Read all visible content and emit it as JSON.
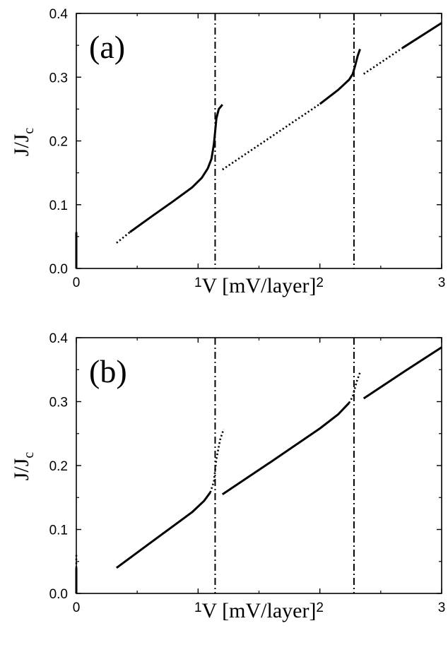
{
  "chart_data": [
    {
      "type": "line",
      "panel_label": "(a)",
      "xlabel": "V [mV/layer]",
      "ylabel": "J/J",
      "ylabel_sub": "c",
      "xlim": [
        0,
        3
      ],
      "ylim": [
        0,
        0.4
      ],
      "xticks": [
        "0",
        "1",
        "2",
        "3"
      ],
      "yticks": [
        "0.0",
        "0.1",
        "0.2",
        "0.3",
        "0.4"
      ],
      "grid": false,
      "vlines": [
        1.14,
        2.28
      ],
      "series": [
        {
          "style": "solid",
          "x": [
            0.0,
            0.0
          ],
          "y": [
            0.0,
            0.057
          ]
        },
        {
          "style": "dotted",
          "x": [
            0.33,
            0.44
          ],
          "y": [
            0.04,
            0.057
          ]
        },
        {
          "style": "solid",
          "x": [
            0.44,
            0.6,
            0.8,
            0.95,
            1.03,
            1.08,
            1.11,
            1.13,
            1.14,
            1.15,
            1.17,
            1.2
          ],
          "y": [
            0.057,
            0.079,
            0.106,
            0.127,
            0.142,
            0.157,
            0.172,
            0.195,
            0.215,
            0.235,
            0.25,
            0.257
          ]
        },
        {
          "style": "dotted",
          "x": [
            1.2,
            2.0
          ],
          "y": [
            0.155,
            0.258
          ]
        },
        {
          "style": "solid",
          "x": [
            2.0,
            2.15,
            2.24,
            2.27,
            2.29,
            2.31,
            2.33
          ],
          "y": [
            0.258,
            0.28,
            0.296,
            0.305,
            0.318,
            0.333,
            0.344
          ]
        },
        {
          "style": "dotted",
          "x": [
            2.36,
            2.68
          ],
          "y": [
            0.305,
            0.346
          ]
        },
        {
          "style": "solid",
          "x": [
            2.68,
            3.0
          ],
          "y": [
            0.346,
            0.385
          ]
        }
      ]
    },
    {
      "type": "line",
      "panel_label": "(b)",
      "xlabel": "V [mV/layer]",
      "ylabel": "J/J",
      "ylabel_sub": "c",
      "xlim": [
        0,
        3
      ],
      "ylim": [
        0,
        0.4
      ],
      "xticks": [
        "0",
        "1",
        "2",
        "3"
      ],
      "yticks": [
        "0.0",
        "0.1",
        "0.2",
        "0.3",
        "0.4"
      ],
      "grid": false,
      "vlines": [
        1.14,
        2.28
      ],
      "series": [
        {
          "style": "solid",
          "x": [
            0.0,
            0.0
          ],
          "y": [
            0.0,
            0.04
          ]
        },
        {
          "style": "dotted",
          "x": [
            0.0,
            0.0
          ],
          "y": [
            0.04,
            0.06
          ]
        },
        {
          "style": "solid",
          "x": [
            0.33,
            0.6,
            0.8,
            0.95,
            1.05,
            1.1
          ],
          "y": [
            0.04,
            0.078,
            0.106,
            0.127,
            0.145,
            0.158
          ]
        },
        {
          "style": "dotted",
          "x": [
            1.1,
            1.13,
            1.15,
            1.18,
            1.21
          ],
          "y": [
            0.158,
            0.175,
            0.21,
            0.24,
            0.257
          ]
        },
        {
          "style": "solid",
          "x": [
            1.2,
            1.6,
            2.0,
            2.15,
            2.24
          ],
          "y": [
            0.155,
            0.206,
            0.258,
            0.28,
            0.298
          ]
        },
        {
          "style": "dotted",
          "x": [
            2.24,
            2.27,
            2.3,
            2.33
          ],
          "y": [
            0.298,
            0.308,
            0.33,
            0.346
          ]
        },
        {
          "style": "solid",
          "x": [
            2.36,
            2.7,
            3.0
          ],
          "y": [
            0.305,
            0.348,
            0.385
          ]
        }
      ]
    }
  ]
}
